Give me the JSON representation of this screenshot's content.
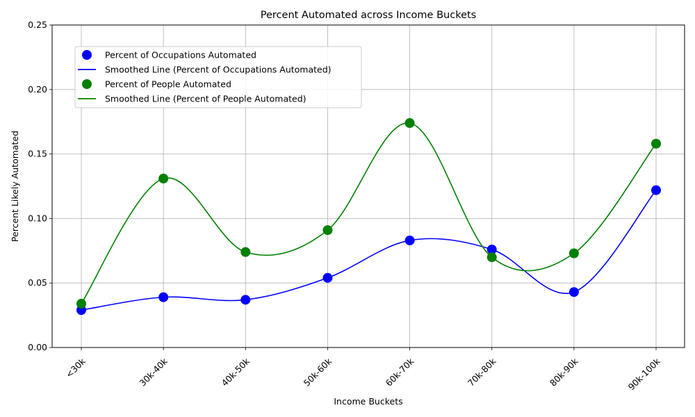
{
  "chart_data": {
    "type": "line",
    "title": "Percent Automated across Income Buckets",
    "xlabel": "Income Buckets",
    "ylabel": "Percent Likely Automated",
    "categories": [
      "<30k",
      "30k-40k",
      "40k-50k",
      "50k-60k",
      "60k-70k",
      "70k-80k",
      "80k-90k",
      "90k-100k"
    ],
    "ylim": [
      0,
      0.25
    ],
    "yticks": [
      "0.00",
      "0.05",
      "0.10",
      "0.15",
      "0.20",
      "0.25"
    ],
    "grid": true,
    "legend_position": "upper-left",
    "series": [
      {
        "name": "Percent of Occupations Automated",
        "line_name": "Smoothed Line (Percent of Occupations Automated)",
        "color": "#0000ff",
        "values": [
          0.029,
          0.039,
          0.037,
          0.054,
          0.083,
          0.076,
          0.043,
          0.122
        ]
      },
      {
        "name": "Percent of People Automated",
        "line_name": "Smoothed Line (Percent of People Automated)",
        "color": "#008000",
        "values": [
          0.034,
          0.131,
          0.074,
          0.091,
          0.174,
          0.07,
          0.073,
          0.158
        ]
      }
    ]
  }
}
